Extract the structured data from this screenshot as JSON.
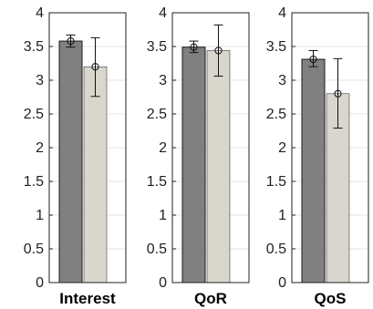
{
  "chart_data": [
    {
      "type": "bar",
      "xlabel": "Interest",
      "ylim": [
        0,
        4
      ],
      "yticks": [
        "0",
        "0.5",
        "1",
        "1.5",
        "2",
        "2.5",
        "3",
        "3.5",
        "4"
      ],
      "grid": true,
      "series": [
        {
          "values": [
            3.58
          ],
          "error_low": [
            3.49
          ],
          "error_high": [
            3.67
          ],
          "color": "#808080"
        },
        {
          "values": [
            3.2
          ],
          "error_low": [
            2.76
          ],
          "error_high": [
            3.63
          ],
          "color": "#d9d6ce"
        }
      ]
    },
    {
      "type": "bar",
      "xlabel": "QoR",
      "ylim": [
        0,
        4
      ],
      "yticks": [
        "0",
        "0.5",
        "1",
        "1.5",
        "2",
        "2.5",
        "3",
        "3.5",
        "4"
      ],
      "grid": true,
      "series": [
        {
          "values": [
            3.49
          ],
          "error_low": [
            3.41
          ],
          "error_high": [
            3.58
          ],
          "color": "#808080"
        },
        {
          "values": [
            3.44
          ],
          "error_low": [
            3.06
          ],
          "error_high": [
            3.82
          ],
          "color": "#d9d6ce"
        }
      ]
    },
    {
      "type": "bar",
      "xlabel": "QoS",
      "ylim": [
        0,
        4
      ],
      "yticks": [
        "0",
        "0.5",
        "1",
        "1.5",
        "2",
        "2.5",
        "3",
        "3.5",
        "4"
      ],
      "grid": true,
      "series": [
        {
          "values": [
            3.31
          ],
          "error_low": [
            3.2
          ],
          "error_high": [
            3.44
          ],
          "color": "#808080"
        },
        {
          "values": [
            2.8
          ],
          "error_low": [
            2.29
          ],
          "error_high": [
            3.32
          ],
          "color": "#d9d6ce"
        }
      ]
    }
  ]
}
